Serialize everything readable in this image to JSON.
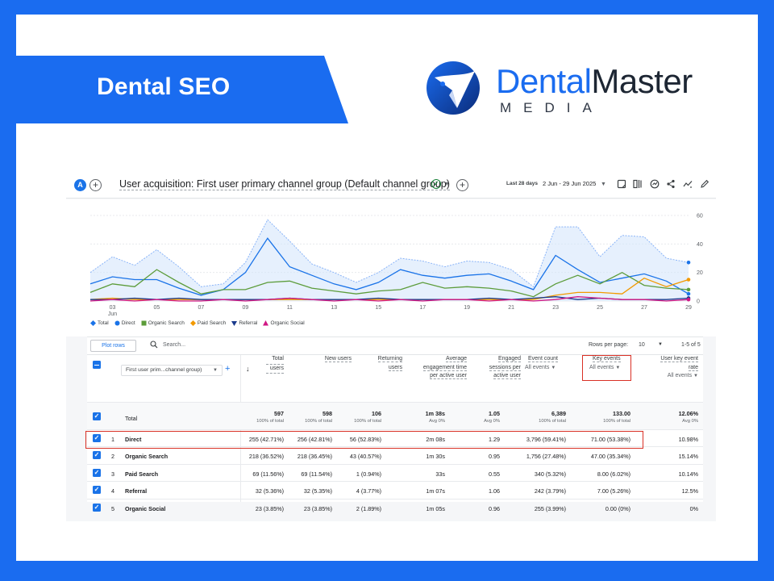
{
  "banner": {
    "title": "Dental SEO"
  },
  "logo": {
    "word1": "Dental",
    "word2": "Master",
    "sub": "MEDIA"
  },
  "ga": {
    "avatar": "A",
    "title": "User acquisition: First user primary channel group (Default channel group)",
    "date_label": "Last 28 days",
    "date_range": "2 Jun - 29 Jun 2025",
    "icons": [
      "share-report-icon",
      "compare-icon",
      "insights-icon",
      "share-icon",
      "trend-icon",
      "edit-icon"
    ]
  },
  "chart_data": {
    "type": "line",
    "x_ticks": [
      {
        "label": "03",
        "sub": "Jun"
      },
      {
        "label": "05",
        "sub": ""
      },
      {
        "label": "07",
        "sub": ""
      },
      {
        "label": "09",
        "sub": ""
      },
      {
        "label": "11",
        "sub": ""
      },
      {
        "label": "13",
        "sub": ""
      },
      {
        "label": "15",
        "sub": ""
      },
      {
        "label": "17",
        "sub": ""
      },
      {
        "label": "19",
        "sub": ""
      },
      {
        "label": "21",
        "sub": ""
      },
      {
        "label": "23",
        "sub": ""
      },
      {
        "label": "25",
        "sub": ""
      },
      {
        "label": "27",
        "sub": ""
      },
      {
        "label": "29",
        "sub": ""
      }
    ],
    "y_ticks": [
      "60",
      "40",
      "20",
      "0"
    ],
    "ylim": [
      0,
      60
    ],
    "x_days": [
      2,
      3,
      4,
      5,
      6,
      7,
      8,
      9,
      10,
      11,
      12,
      13,
      14,
      15,
      16,
      17,
      18,
      19,
      20,
      21,
      22,
      23,
      24,
      25,
      26,
      27,
      28,
      29
    ],
    "series": [
      {
        "name": "Total",
        "color": "#1a73e8",
        "area": true,
        "values": [
          20,
          31,
          25,
          36,
          24,
          10,
          12,
          27,
          57,
          42,
          26,
          20,
          13,
          20,
          30,
          28,
          24,
          28,
          27,
          22,
          10,
          52,
          52,
          31,
          46,
          45,
          30,
          27
        ]
      },
      {
        "name": "Direct",
        "color": "#1a73e8",
        "values": [
          12,
          17,
          15,
          15,
          9,
          4,
          8,
          20,
          44,
          24,
          18,
          12,
          8,
          13,
          22,
          18,
          16,
          18,
          19,
          14,
          8,
          32,
          22,
          13,
          16,
          19,
          14,
          5
        ]
      },
      {
        "name": "Organic Search",
        "color": "#5c9c3a",
        "values": [
          6,
          12,
          10,
          22,
          13,
          5,
          8,
          8,
          13,
          14,
          9,
          7,
          5,
          7,
          8,
          13,
          9,
          10,
          9,
          7,
          3,
          12,
          18,
          12,
          20,
          11,
          9,
          8
        ]
      },
      {
        "name": "Paid Search",
        "color": "#f29900",
        "values": [
          1,
          2,
          1,
          1,
          1,
          1,
          1,
          1,
          1,
          1,
          1,
          1,
          1,
          1,
          1,
          1,
          1,
          1,
          1,
          1,
          1,
          4,
          6,
          6,
          5,
          16,
          10,
          15
        ]
      },
      {
        "name": "Referral",
        "color": "#1a3a8c",
        "values": [
          1,
          1,
          2,
          1,
          2,
          1,
          1,
          1,
          1,
          2,
          1,
          1,
          1,
          2,
          1,
          1,
          1,
          1,
          2,
          1,
          2,
          3,
          1,
          2,
          1,
          1,
          1,
          2
        ]
      },
      {
        "name": "Organic Social",
        "color": "#d01884",
        "values": [
          0,
          1,
          0,
          1,
          0,
          0,
          1,
          0,
          1,
          2,
          1,
          0,
          1,
          0,
          1,
          0,
          1,
          1,
          0,
          1,
          0,
          1,
          3,
          2,
          1,
          1,
          0,
          1
        ]
      }
    ]
  },
  "table": {
    "plot_rows": "Plot rows",
    "search_placeholder": "Search...",
    "rows_per_page_label": "Rows per page:",
    "rows_per_page": "10",
    "range": "1-5 of 5",
    "dimension": "First user prim...channel group)",
    "headers": {
      "total_users": [
        "Total",
        "users"
      ],
      "new_users": "New users",
      "returning": [
        "Returning",
        "users"
      ],
      "avg_eng": [
        "Average",
        "engagement time",
        "per active user"
      ],
      "eng_sessions": [
        "Engaged",
        "sessions per",
        "active user"
      ],
      "event_count": "Event count",
      "event_count_sub": "All events",
      "key_events": "Key events",
      "key_events_sub": "All events",
      "user_key": [
        "User key event",
        "rate"
      ],
      "user_key_sub": "All events"
    },
    "totals": {
      "label": "Total",
      "total_users": "597",
      "total_users_sub": "100% of total",
      "new_users": "598",
      "new_users_sub": "100% of total",
      "returning": "106",
      "returning_sub": "100% of total",
      "avg_eng": "1m 38s",
      "avg_eng_sub": "Avg 0%",
      "eng_sessions": "1.05",
      "eng_sessions_sub": "Avg 0%",
      "event_count": "6,389",
      "event_count_sub": "100% of total",
      "key_events": "133.00",
      "key_events_sub": "100% of total",
      "user_key": "12.06%",
      "user_key_sub": "Avg 0%"
    },
    "rows": [
      {
        "n": "1",
        "channel": "Direct",
        "total_users": "255 (42.71%)",
        "new_users": "256 (42.81%)",
        "returning": "56 (52.83%)",
        "avg_eng": "2m 08s",
        "eng_sessions": "1.29",
        "event_count": "3,796 (59.41%)",
        "key_events": "71.00 (53.38%)",
        "user_key": "10.98%"
      },
      {
        "n": "2",
        "channel": "Organic Search",
        "total_users": "218 (36.52%)",
        "new_users": "218 (36.45%)",
        "returning": "43 (40.57%)",
        "avg_eng": "1m 30s",
        "eng_sessions": "0.95",
        "event_count": "1,756 (27.48%)",
        "key_events": "47.00 (35.34%)",
        "user_key": "15.14%"
      },
      {
        "n": "3",
        "channel": "Paid Search",
        "total_users": "69 (11.56%)",
        "new_users": "69 (11.54%)",
        "returning": "1 (0.94%)",
        "avg_eng": "33s",
        "eng_sessions": "0.55",
        "event_count": "340 (5.32%)",
        "key_events": "8.00 (6.02%)",
        "user_key": "10.14%"
      },
      {
        "n": "4",
        "channel": "Referral",
        "total_users": "32 (5.36%)",
        "new_users": "32 (5.35%)",
        "returning": "4 (3.77%)",
        "avg_eng": "1m 07s",
        "eng_sessions": "1.06",
        "event_count": "242 (3.79%)",
        "key_events": "7.00 (5.26%)",
        "user_key": "12.5%"
      },
      {
        "n": "5",
        "channel": "Organic Social",
        "total_users": "23 (3.85%)",
        "new_users": "23 (3.85%)",
        "returning": "2 (1.89%)",
        "avg_eng": "1m 05s",
        "eng_sessions": "0.96",
        "event_count": "255 (3.99%)",
        "key_events": "0.00 (0%)",
        "user_key": "0%"
      }
    ]
  }
}
